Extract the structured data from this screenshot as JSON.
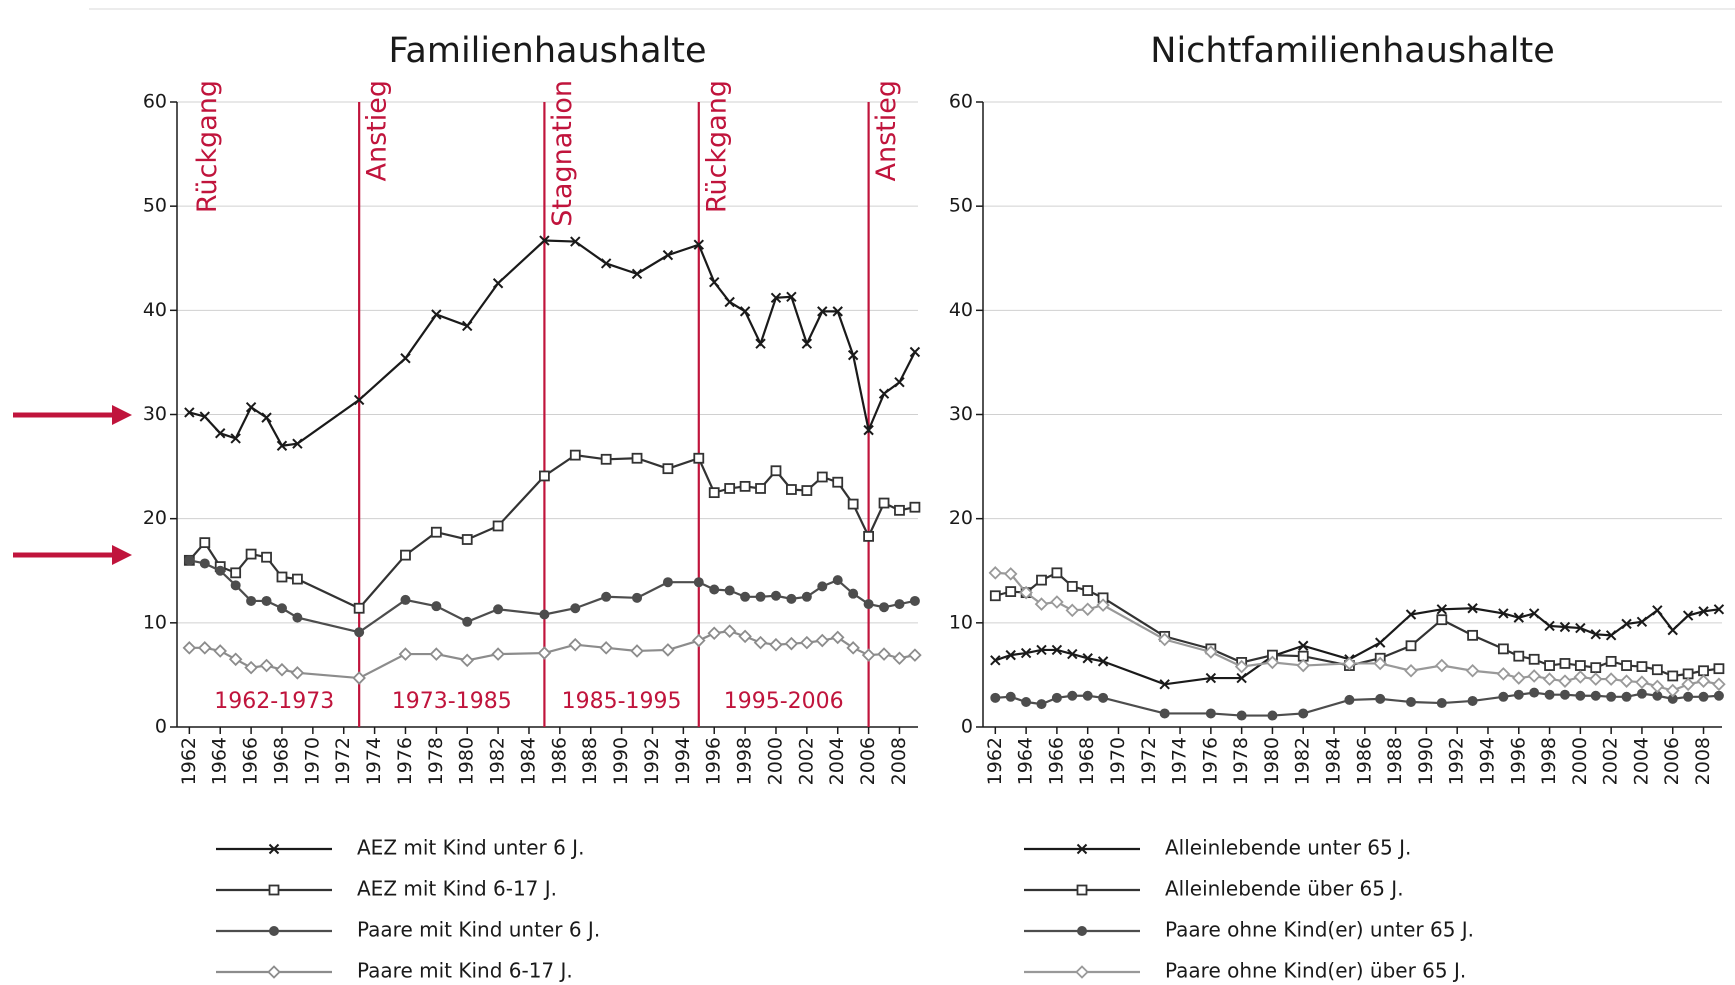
{
  "chart_data": [
    {
      "type": "line",
      "title": "Familienhaushalte",
      "x": [
        1962,
        1963,
        1964,
        1965,
        1966,
        1967,
        1968,
        1969,
        1973,
        1976,
        1978,
        1980,
        1982,
        1985,
        1987,
        1989,
        1991,
        1993,
        1995,
        1996,
        1997,
        1998,
        1999,
        2000,
        2001,
        2002,
        2003,
        2004,
        2005,
        2006,
        2007,
        2008,
        2009
      ],
      "series": [
        {
          "name": "AEZ mit Kind unter 6 J.",
          "color": "#1a1a1a",
          "marker": "x",
          "values": [
            30.2,
            29.8,
            28.2,
            27.7,
            30.7,
            29.7,
            27.0,
            27.2,
            31.4,
            35.4,
            39.6,
            38.5,
            42.6,
            46.7,
            46.6,
            44.5,
            43.5,
            45.3,
            46.3,
            42.7,
            40.8,
            39.9,
            36.8,
            41.2,
            41.3,
            36.8,
            39.9,
            39.9,
            35.7,
            28.5,
            32.0,
            33.1,
            36.0
          ]
        },
        {
          "name": "AEZ mit Kind 6-17 J.",
          "color": "#333333",
          "marker": "square",
          "values": [
            16.0,
            17.7,
            15.4,
            14.8,
            16.6,
            16.3,
            14.4,
            14.2,
            11.4,
            16.5,
            18.7,
            18.0,
            19.3,
            24.1,
            26.1,
            25.7,
            25.8,
            24.8,
            25.8,
            22.5,
            22.9,
            23.1,
            22.9,
            24.6,
            22.8,
            22.7,
            24.0,
            23.5,
            21.4,
            18.3,
            21.5,
            20.8,
            21.1
          ]
        },
        {
          "name": "Paare mit Kind unter 6 J.",
          "color": "#4d4d4d",
          "marker": "circle",
          "values": [
            16.0,
            15.7,
            15.0,
            13.6,
            12.1,
            12.1,
            11.4,
            10.5,
            9.1,
            12.2,
            11.6,
            10.1,
            11.3,
            10.8,
            11.4,
            12.5,
            12.4,
            13.9,
            13.9,
            13.2,
            13.1,
            12.5,
            12.5,
            12.6,
            12.3,
            12.5,
            13.5,
            14.1,
            12.8,
            11.8,
            11.5,
            11.8,
            12.1
          ]
        },
        {
          "name": "Paare mit Kind 6-17 J.",
          "color": "#8c8c8c",
          "marker": "diamond",
          "values": [
            7.6,
            7.6,
            7.3,
            6.5,
            5.7,
            5.9,
            5.5,
            5.2,
            4.7,
            7.0,
            7.0,
            6.4,
            7.0,
            7.1,
            7.9,
            7.6,
            7.3,
            7.4,
            8.3,
            9.0,
            9.2,
            8.7,
            8.1,
            7.9,
            8.0,
            8.1,
            8.3,
            8.6,
            7.6,
            6.9,
            7.0,
            6.6,
            6.9
          ]
        }
      ],
      "xlim": [
        1961.2,
        2009.2
      ],
      "ylim": [
        0,
        60
      ],
      "xticks": [
        1962,
        1964,
        1966,
        1968,
        1970,
        1972,
        1974,
        1976,
        1978,
        1980,
        1982,
        1984,
        1986,
        1988,
        1990,
        1992,
        1994,
        1996,
        1998,
        2000,
        2002,
        2004,
        2006,
        2008
      ],
      "yticks": [
        0,
        10,
        20,
        30,
        40,
        50,
        60
      ],
      "grid": true,
      "phases": [
        {
          "label": "Rückgang",
          "start": 1962
        },
        {
          "label": "Anstieg",
          "start": 1973
        },
        {
          "label": "Stagnation",
          "start": 1985
        },
        {
          "label": "Rückgang",
          "start": 1995
        },
        {
          "label": "Anstieg",
          "start": 2006
        }
      ],
      "periods": [
        "1962-1973",
        "1973-1985",
        "1985-1995",
        "1995-2006"
      ]
    },
    {
      "type": "line",
      "title": "Nichtfamilienhaushalte",
      "x": [
        1962,
        1963,
        1964,
        1965,
        1966,
        1967,
        1968,
        1969,
        1973,
        1976,
        1978,
        1980,
        1982,
        1985,
        1987,
        1989,
        1991,
        1993,
        1995,
        1996,
        1997,
        1998,
        1999,
        2000,
        2001,
        2002,
        2003,
        2004,
        2005,
        2006,
        2007,
        2008,
        2009
      ],
      "series": [
        {
          "name": "Alleinlebende unter 65 J.",
          "color": "#1a1a1a",
          "marker": "x",
          "values": [
            6.4,
            6.9,
            7.1,
            7.4,
            7.4,
            7.0,
            6.6,
            6.3,
            4.1,
            4.7,
            4.7,
            6.8,
            7.8,
            6.5,
            8.1,
            10.8,
            11.3,
            11.4,
            10.9,
            10.5,
            10.9,
            9.7,
            9.6,
            9.5,
            8.9,
            8.8,
            9.9,
            10.1,
            11.2,
            9.3,
            10.7,
            11.1,
            11.3
          ]
        },
        {
          "name": "Alleinlebende über 65 J.",
          "color": "#333333",
          "marker": "square",
          "values": [
            12.6,
            13.0,
            12.9,
            14.1,
            14.8,
            13.5,
            13.1,
            12.4,
            8.7,
            7.5,
            6.2,
            6.9,
            6.8,
            5.9,
            6.6,
            7.8,
            10.3,
            8.8,
            7.5,
            6.8,
            6.5,
            5.9,
            6.1,
            5.9,
            5.7,
            6.3,
            5.9,
            5.8,
            5.5,
            4.9,
            5.1,
            5.4,
            5.6
          ]
        },
        {
          "name": "Paare ohne Kind(er) unter 65 J.",
          "color": "#4d4d4d",
          "marker": "circle",
          "values": [
            2.8,
            2.9,
            2.4,
            2.2,
            2.8,
            3.0,
            3.0,
            2.8,
            1.3,
            1.3,
            1.1,
            1.1,
            1.3,
            2.6,
            2.7,
            2.4,
            2.3,
            2.5,
            2.9,
            3.1,
            3.3,
            3.1,
            3.1,
            3.0,
            3.0,
            2.9,
            2.9,
            3.2,
            3.0,
            2.7,
            2.9,
            2.9,
            3.0
          ]
        },
        {
          "name": "Paare ohne Kind(er) über 65 J.",
          "color": "#999999",
          "marker": "diamond",
          "values": [
            14.8,
            14.7,
            12.9,
            11.8,
            12.0,
            11.2,
            11.3,
            11.7,
            8.4,
            7.2,
            5.8,
            6.2,
            5.9,
            6.1,
            6.1,
            5.4,
            5.9,
            5.4,
            5.1,
            4.7,
            4.9,
            4.6,
            4.4,
            4.8,
            4.6,
            4.6,
            4.4,
            4.3,
            3.9,
            3.5,
            4.1,
            4.4,
            4.1
          ]
        }
      ],
      "xlim": [
        1961.2,
        2009.2
      ],
      "ylim": [
        0,
        60
      ],
      "xticks": [
        1962,
        1964,
        1966,
        1968,
        1970,
        1972,
        1974,
        1976,
        1978,
        1980,
        1982,
        1984,
        1986,
        1988,
        1990,
        1992,
        1994,
        1996,
        1998,
        2000,
        2002,
        2004,
        2006,
        2008
      ],
      "yticks": [
        0,
        10,
        20,
        30,
        40,
        50,
        60
      ],
      "grid": true
    }
  ]
}
